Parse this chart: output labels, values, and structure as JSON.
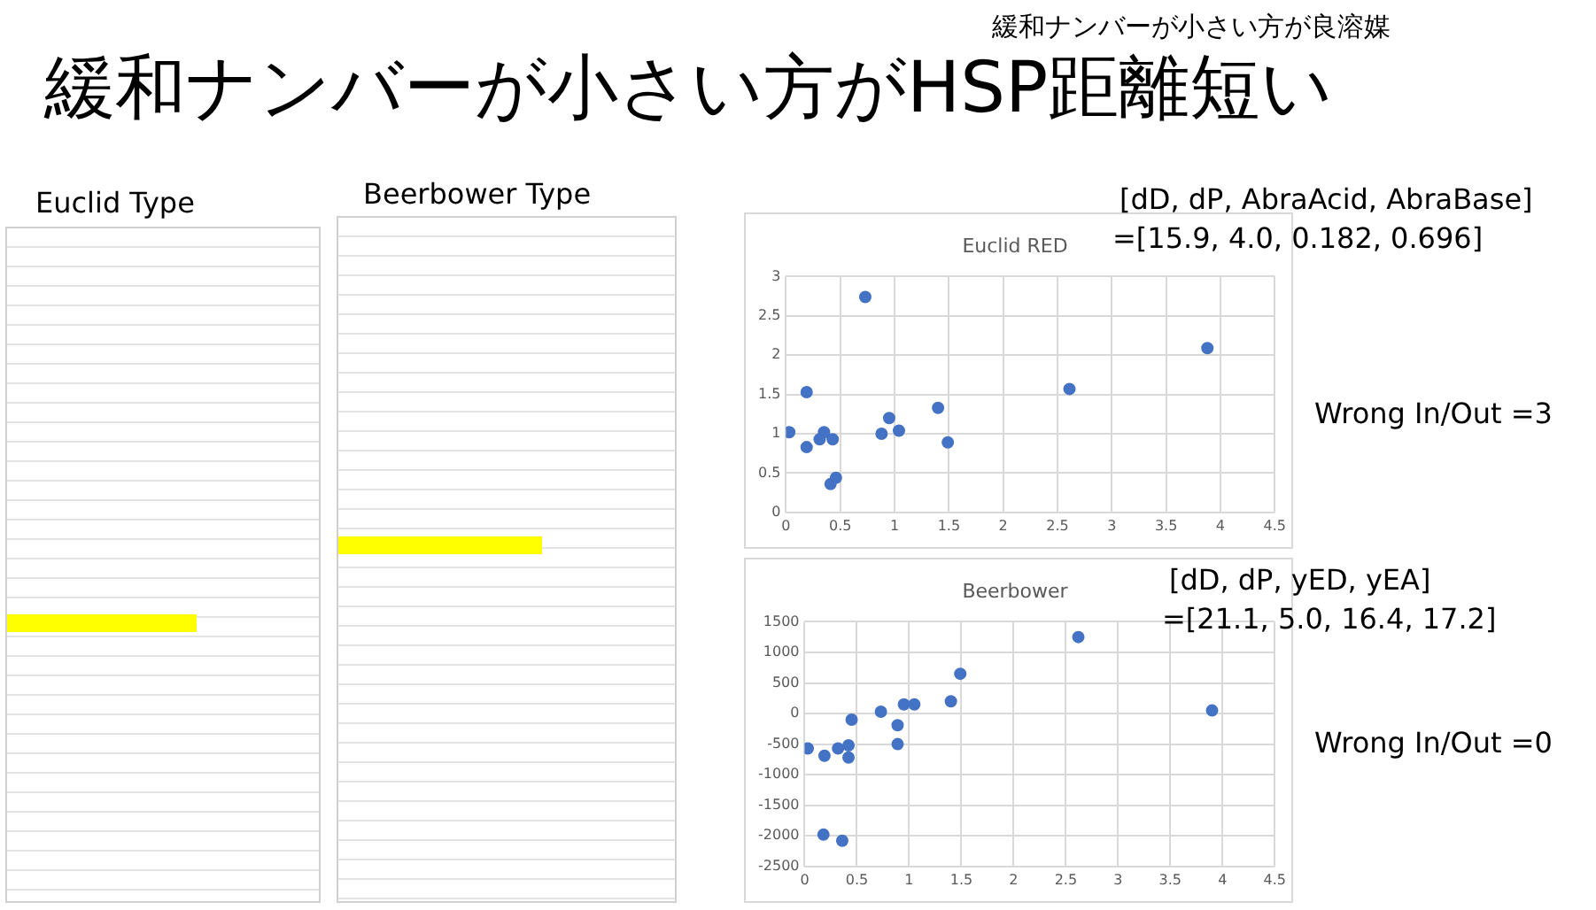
{
  "chart_data": [
    {
      "type": "scatter",
      "title": "Euclid RED",
      "marker": "circle",
      "grid": true,
      "legend": false,
      "x": [
        0.03,
        0.19,
        0.19,
        0.31,
        0.35,
        0.43,
        0.41,
        0.46,
        0.73,
        0.88,
        0.95,
        1.04,
        1.4,
        1.49,
        2.61,
        3.88
      ],
      "series": [
        {
          "color": "#4472c4",
          "values": [
            1.02,
            1.53,
            0.83,
            0.93,
            1.02,
            0.93,
            0.36,
            0.44,
            2.74,
            1.0,
            1.2,
            1.04,
            1.33,
            0.89,
            1.57,
            2.09
          ]
        }
      ],
      "xlim": [
        0,
        4.5
      ],
      "xticks": [
        0,
        0.5,
        1,
        1.5,
        2,
        2.5,
        3,
        3.5,
        4,
        4.5
      ],
      "ylim": [
        0,
        3
      ],
      "yticks": [
        0,
        0.5,
        1,
        1.5,
        2,
        2.5,
        3
      ],
      "annotations": [
        "緩和ナンバーが小さい方が良溶媒",
        "緩和ナンバーが小さい方がHSP距離短い",
        "Euclid Type",
        "[dD, dP, AbraAcid, AbraBase]",
        "=[15.9, 4.0, 0.182, 0.696]",
        "Wrong In/Out =3"
      ]
    },
    {
      "type": "scatter",
      "title": "Beerbower",
      "marker": "circle",
      "grid": true,
      "legend": false,
      "x": [
        0.03,
        0.19,
        0.18,
        0.32,
        0.42,
        0.42,
        0.45,
        0.36,
        0.73,
        0.89,
        0.89,
        0.95,
        1.05,
        1.4,
        1.49,
        2.62,
        3.9
      ],
      "series": [
        {
          "color": "#4472c4",
          "values": [
            -570,
            -690,
            -1980,
            -570,
            -520,
            -720,
            -100,
            -2080,
            30,
            -190,
            -500,
            150,
            150,
            200,
            650,
            1250,
            50
          ]
        }
      ],
      "xlim": [
        0,
        4.5
      ],
      "xticks": [
        0,
        0.5,
        1,
        1.5,
        2,
        2.5,
        3,
        3.5,
        4,
        4.5
      ],
      "ylim": [
        -2500,
        1500
      ],
      "yticks": [
        -2500,
        -2000,
        -1500,
        -1000,
        -500,
        0,
        500,
        1000,
        1500
      ],
      "annotations": [
        "Beerbower Type",
        "[dD, dP, yED, yEA]",
        "=[21.1, 5.0, 16.4, 17.2]",
        "Wrong In/Out =0"
      ]
    }
  ]
}
